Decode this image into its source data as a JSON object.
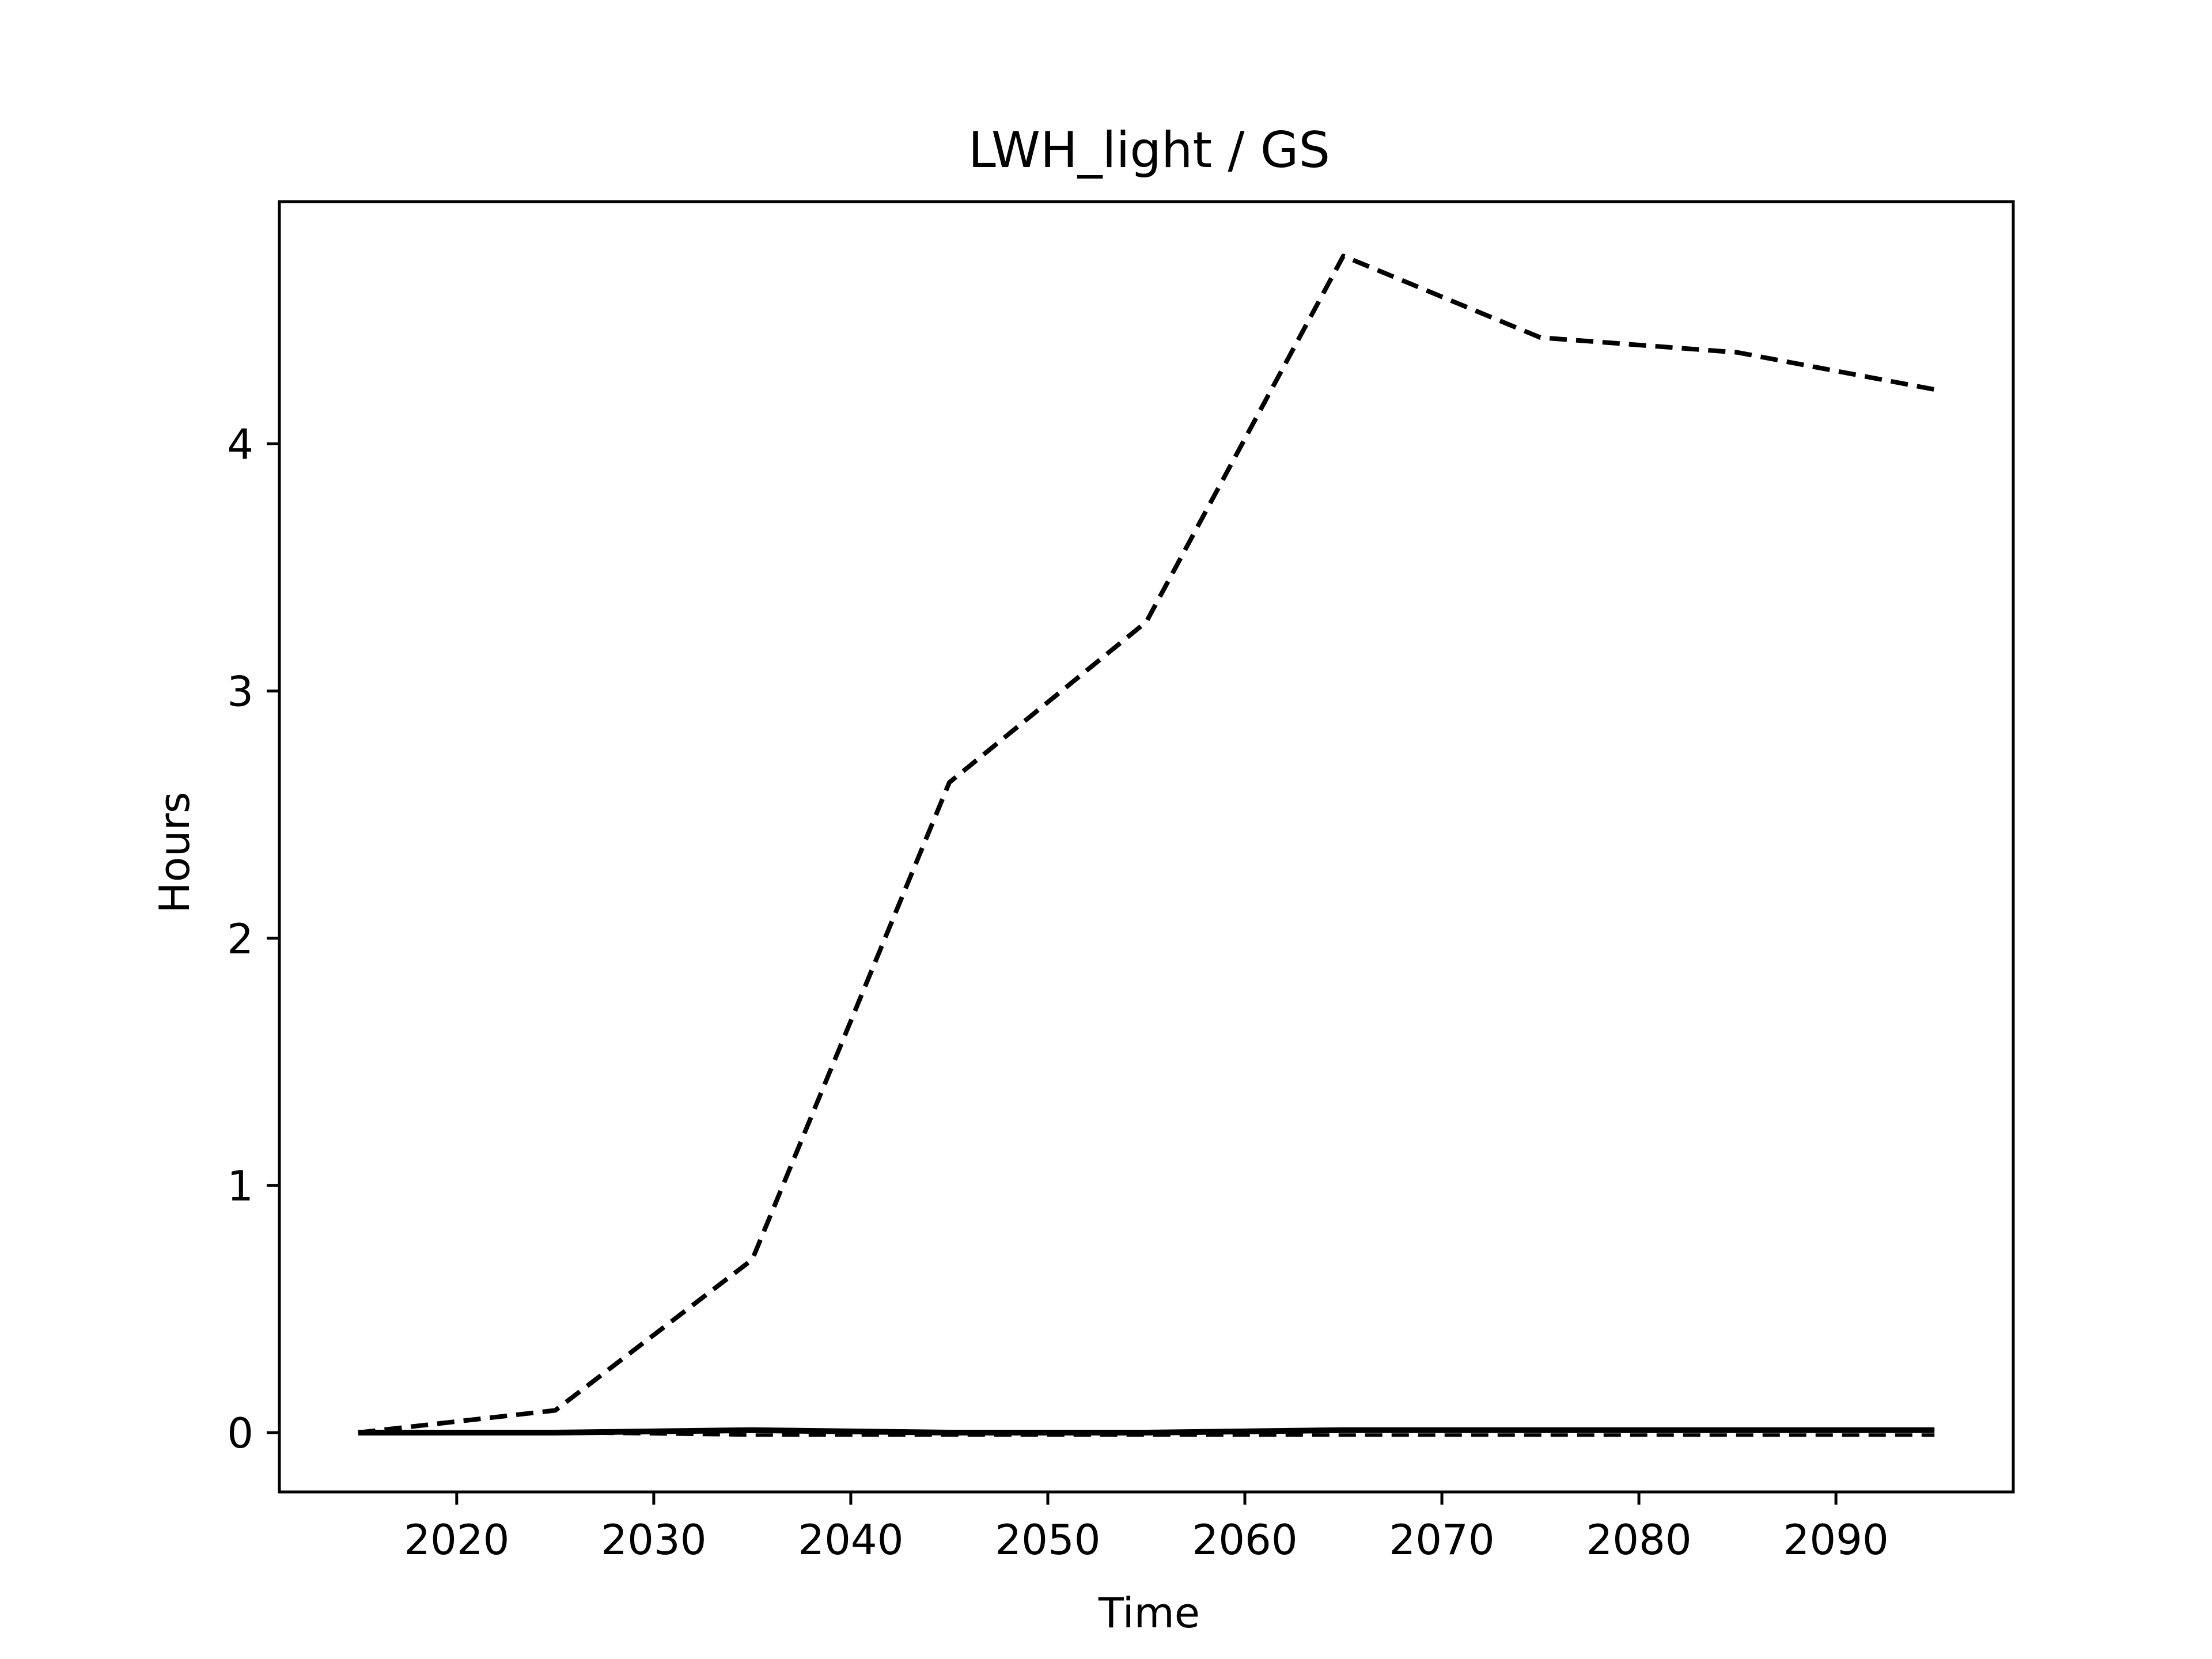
{
  "chart_data": {
    "type": "line",
    "title": "LWH_light / GS",
    "xlabel": "Time",
    "ylabel": "Hours",
    "xlim": [
      2011,
      2099
    ],
    "ylim": [
      -0.24,
      4.98
    ],
    "xticks": [
      2020,
      2030,
      2040,
      2050,
      2060,
      2070,
      2080,
      2090
    ],
    "yticks": [
      0,
      1,
      2,
      3,
      4
    ],
    "grid": false,
    "legend": "none",
    "x": [
      2015,
      2025,
      2035,
      2045,
      2055,
      2065,
      2075,
      2085,
      2095
    ],
    "series": [
      {
        "style": "dashed",
        "color": "#000000",
        "values": [
          0.0,
          0.09,
          0.7,
          2.63,
          3.28,
          4.76,
          4.43,
          4.37,
          4.22
        ]
      },
      {
        "style": "solid",
        "color": "#000000",
        "values": [
          0.0,
          0.0,
          0.01,
          0.0,
          0.0,
          0.01,
          0.01,
          0.01,
          0.01
        ]
      },
      {
        "style": "dashed-thin",
        "color": "#000000",
        "values": [
          0.0,
          0.0,
          -0.01,
          -0.01,
          -0.01,
          -0.01,
          -0.01,
          -0.01,
          -0.01
        ]
      }
    ]
  }
}
